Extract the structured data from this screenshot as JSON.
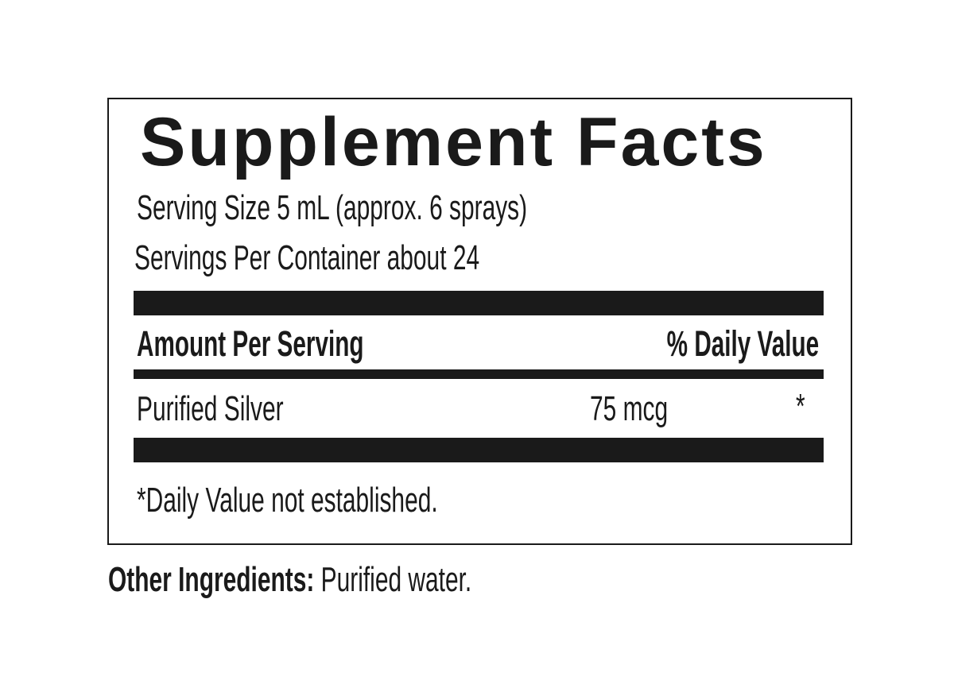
{
  "header": {
    "title": "Supplement Facts",
    "serving_size": "Serving Size 5 mL (approx. 6 sprays)",
    "servings_per_container": "Servings Per Container about 24"
  },
  "table": {
    "columns": [
      "Amount Per Serving",
      "% Daily Value"
    ],
    "rows": [
      [
        "Purified Silver",
        "75 mcg",
        "*"
      ]
    ]
  },
  "footnote": "*Daily Value not established.",
  "other_ingredients": {
    "label": "Other Ingredients:",
    "text": "Purified water."
  }
}
